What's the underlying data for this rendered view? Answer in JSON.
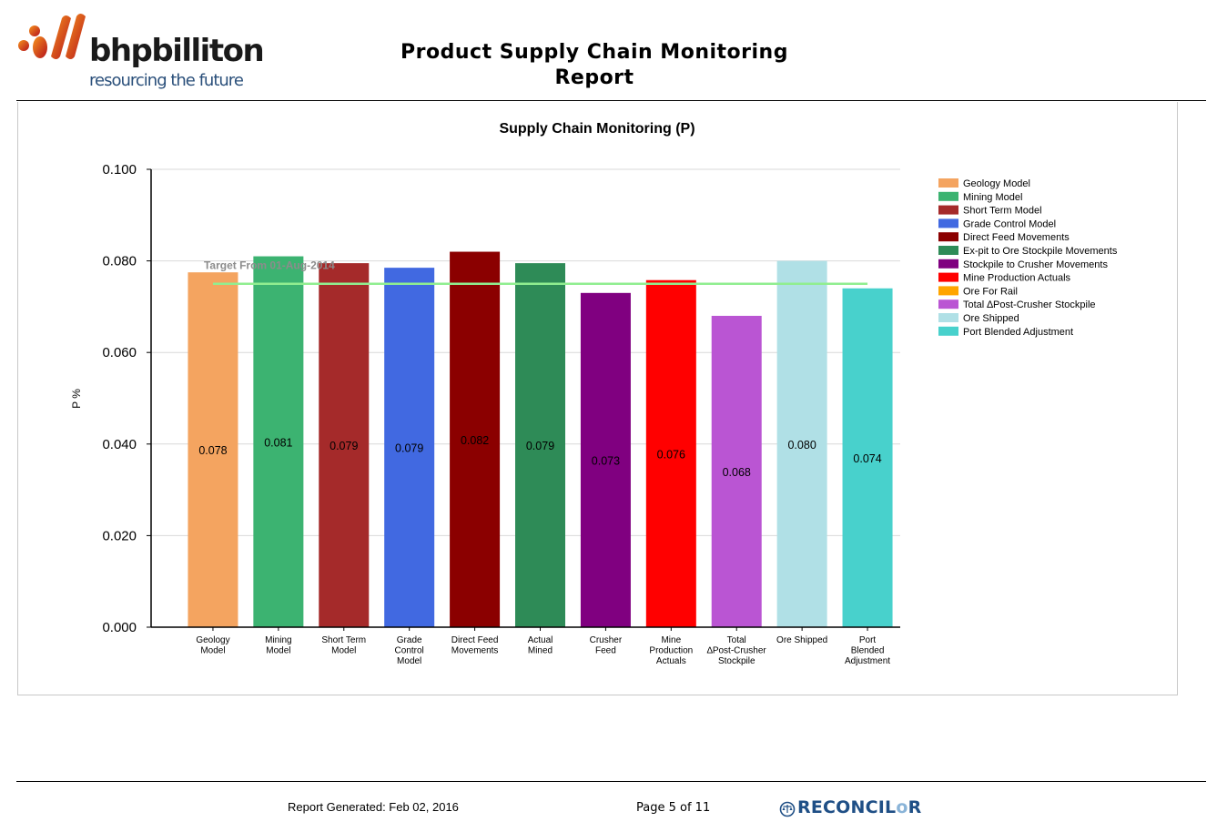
{
  "header": {
    "brand": "bhpbilliton",
    "tagline": "resourcing the future",
    "title_line1": "Product Supply Chain Monitoring",
    "title_line2": "Report"
  },
  "chart_data": {
    "type": "bar",
    "title": "Supply Chain Monitoring (P)",
    "ylabel": "P %",
    "xlabel": "",
    "ylim": [
      0,
      0.1
    ],
    "yticks": [
      "0.000",
      "0.020",
      "0.040",
      "0.060",
      "0.080",
      "0.100"
    ],
    "grid": true,
    "legend_position": "right",
    "categories": [
      "Geology Model",
      "Mining Model",
      "Short Term Model",
      "Grade Control Model",
      "Direct Feed Movements",
      "Actual Mined",
      "Crusher Feed",
      "Mine Production Actuals",
      "Total ∆Post-Crusher Stockpile",
      "Ore Shipped",
      "Port Blended Adjustment"
    ],
    "values": [
      0.0775,
      0.081,
      0.0795,
      0.0785,
      0.082,
      0.0795,
      0.073,
      0.0758,
      0.068,
      0.08,
      0.074
    ],
    "value_labels": [
      "0.078",
      "0.081",
      "0.079",
      "0.079",
      "0.082",
      "0.079",
      "0.073",
      "0.076",
      "0.068",
      "0.080",
      "0.074"
    ],
    "bar_colors": [
      "#f4a460",
      "#3cb371",
      "#a52a2a",
      "#4169e1",
      "#8b0000",
      "#2e8b57",
      "#800080",
      "#ff0000",
      "#ba55d3",
      "#b0e0e6",
      "#48d1cc"
    ],
    "target": {
      "label": "Target From 01-Aug-2014",
      "value": 0.075,
      "color": "#90ee90"
    },
    "legend": [
      {
        "name": "Geology Model",
        "color": "#f4a460"
      },
      {
        "name": "Mining Model",
        "color": "#3cb371"
      },
      {
        "name": "Short Term Model",
        "color": "#a52a2a"
      },
      {
        "name": "Grade Control Model",
        "color": "#4169e1"
      },
      {
        "name": "Direct Feed Movements",
        "color": "#8b0000"
      },
      {
        "name": "Ex-pit to Ore Stockpile Movements",
        "color": "#2e8b57"
      },
      {
        "name": "Stockpile to Crusher Movements",
        "color": "#800080"
      },
      {
        "name": "Mine Production Actuals",
        "color": "#ff0000"
      },
      {
        "name": "Ore For Rail",
        "color": "#ffa500"
      },
      {
        "name": "Total ∆Post-Crusher Stockpile",
        "color": "#ba55d3"
      },
      {
        "name": "Ore Shipped",
        "color": "#b0e0e6"
      },
      {
        "name": "Port Blended Adjustment",
        "color": "#48d1cc"
      }
    ]
  },
  "footer": {
    "generated": "Report Generated: Feb 02, 2016",
    "page": "Page 5 of 11",
    "product": "RECONCIL",
    "product_suffix": "R"
  }
}
